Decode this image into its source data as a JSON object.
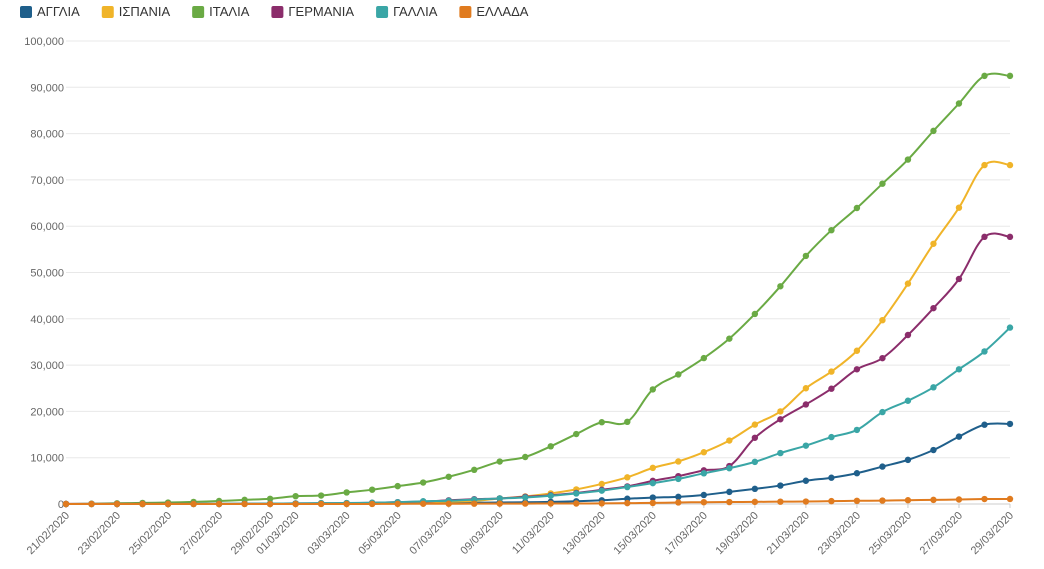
{
  "chart_data": {
    "type": "line",
    "title": "",
    "xlabel": "",
    "ylabel": "",
    "ylim": [
      0,
      100000
    ],
    "yticks": [
      "0",
      "10,000",
      "20,000",
      "30,000",
      "40,000",
      "50,000",
      "60,000",
      "70,000",
      "80,000",
      "90,000",
      "100,000"
    ],
    "ytick_values": [
      0,
      10000,
      20000,
      30000,
      40000,
      50000,
      60000,
      70000,
      80000,
      90000,
      100000
    ],
    "x": [
      "21/02/2020",
      "22/02/2020",
      "23/02/2020",
      "24/02/2020",
      "25/02/2020",
      "26/02/2020",
      "27/02/2020",
      "28/02/2020",
      "29/02/2020",
      "01/03/2020",
      "02/03/2020",
      "03/03/2020",
      "04/03/2020",
      "05/03/2020",
      "06/03/2020",
      "07/03/2020",
      "08/03/2020",
      "09/03/2020",
      "10/03/2020",
      "11/03/2020",
      "12/03/2020",
      "13/03/2020",
      "14/03/2020",
      "15/03/2020",
      "16/03/2020",
      "17/03/2020",
      "18/03/2020",
      "19/03/2020",
      "20/03/2020",
      "21/03/2020",
      "22/03/2020",
      "23/03/2020",
      "24/03/2020",
      "25/03/2020",
      "26/03/2020",
      "27/03/2020",
      "28/03/2020",
      "29/03/2020"
    ],
    "xtick_labels": [
      "21/02/2020",
      "23/02/2020",
      "25/02/2020",
      "27/02/2020",
      "29/02/2020",
      "01/03/2020",
      "03/03/2020",
      "05/03/2020",
      "07/03/2020",
      "09/03/2020",
      "11/03/2020",
      "13/03/2020",
      "15/03/2020",
      "17/03/2020",
      "19/03/2020",
      "21/03/2020",
      "23/03/2020",
      "25/03/2020",
      "27/03/2020",
      "29/03/2020"
    ],
    "grid": true,
    "legend_position": "top-left",
    "series": [
      {
        "name": "ΑΓΓΛΙΑ",
        "color": "#1f5f8b",
        "values": [
          10,
          10,
          10,
          10,
          10,
          15,
          15,
          20,
          25,
          35,
          40,
          50,
          85,
          115,
          165,
          205,
          275,
          320,
          380,
          460,
          590,
          800,
          1140,
          1390,
          1540,
          1950,
          2620,
          3270,
          3980,
          5020,
          5680,
          6650,
          8080,
          9530,
          11660,
          14550,
          17120,
          17300
        ]
      },
      {
        "name": "ΙΣΠΑΝΙΑ",
        "color": "#f0b429",
        "values": [
          0,
          0,
          0,
          0,
          10,
          10,
          15,
          25,
          35,
          60,
          120,
          170,
          220,
          280,
          400,
          500,
          670,
          1200,
          1640,
          2280,
          3150,
          4330,
          5760,
          7800,
          9190,
          11180,
          13710,
          17150,
          20000,
          25000,
          28600,
          33100,
          39700,
          47600,
          56200,
          64000,
          73200,
          73200
        ]
      },
      {
        "name": "ΙΤΑΛΙΑ",
        "color": "#6aaa44",
        "values": [
          10,
          60,
          150,
          230,
          320,
          450,
          650,
          890,
          1130,
          1690,
          1830,
          2500,
          3090,
          3860,
          4640,
          5880,
          7380,
          9170,
          10150,
          12460,
          15110,
          17660,
          17750,
          24750,
          27980,
          31510,
          35710,
          41040,
          47020,
          53580,
          59140,
          63930,
          69180,
          74390,
          80590,
          86500,
          92470,
          92470
        ]
      },
      {
        "name": "ΓΕΡΜΑΝΙΑ",
        "color": "#8b2d6b",
        "values": [
          15,
          15,
          15,
          15,
          15,
          20,
          25,
          50,
          75,
          130,
          160,
          195,
          260,
          400,
          530,
          800,
          1040,
          1200,
          1560,
          1900,
          2390,
          3060,
          3800,
          5000,
          6010,
          7270,
          8200,
          14300,
          18300,
          21500,
          24900,
          29100,
          31500,
          36500,
          42300,
          48600,
          57700,
          57700
        ]
      },
      {
        "name": "ΓΑΛΛΙΑ",
        "color": "#3aa6a6",
        "values": [
          10,
          12,
          12,
          12,
          12,
          15,
          35,
          60,
          95,
          130,
          190,
          210,
          280,
          400,
          600,
          700,
          950,
          1200,
          1410,
          1780,
          2280,
          2880,
          3660,
          4500,
          5420,
          6630,
          7730,
          9100,
          11000,
          12600,
          14450,
          16000,
          19850,
          22300,
          25200,
          29100,
          32950,
          38100
        ]
      },
      {
        "name": "ΕΛΛΑΔΑ",
        "color": "#e07b1f",
        "values": [
          0,
          0,
          0,
          0,
          0,
          3,
          4,
          7,
          7,
          7,
          7,
          7,
          10,
          30,
          50,
          60,
          70,
          80,
          90,
          100,
          110,
          130,
          190,
          230,
          330,
          390,
          420,
          460,
          500,
          530,
          620,
          690,
          740,
          820,
          890,
          970,
          1070,
          1090
        ]
      }
    ]
  }
}
